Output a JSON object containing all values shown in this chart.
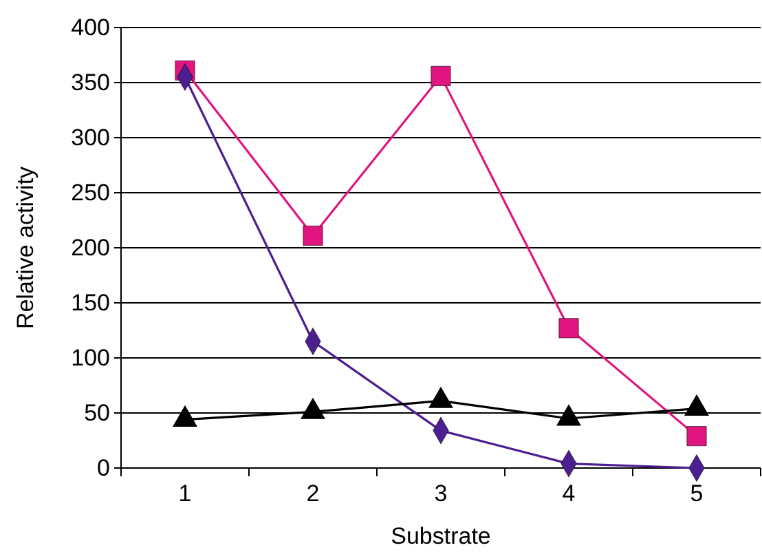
{
  "chart_data": {
    "type": "line",
    "xlabel": "Substrate",
    "ylabel": "Relative activity",
    "categories": [
      "1",
      "2",
      "3",
      "4",
      "5"
    ],
    "series": [
      {
        "color": "#e0157f",
        "marker": "square",
        "values": [
          361,
          211,
          356,
          127,
          29
        ]
      },
      {
        "color": "#4b1f8f",
        "marker": "diamond",
        "values": [
          355,
          115,
          34,
          4,
          0
        ]
      },
      {
        "color": "#000000",
        "marker": "triangle",
        "values": [
          44,
          51,
          61,
          45,
          54
        ]
      }
    ],
    "ylim": [
      0,
      400
    ],
    "yticks": [
      0,
      50,
      100,
      150,
      200,
      250,
      300,
      350,
      400
    ],
    "grid": "y"
  }
}
